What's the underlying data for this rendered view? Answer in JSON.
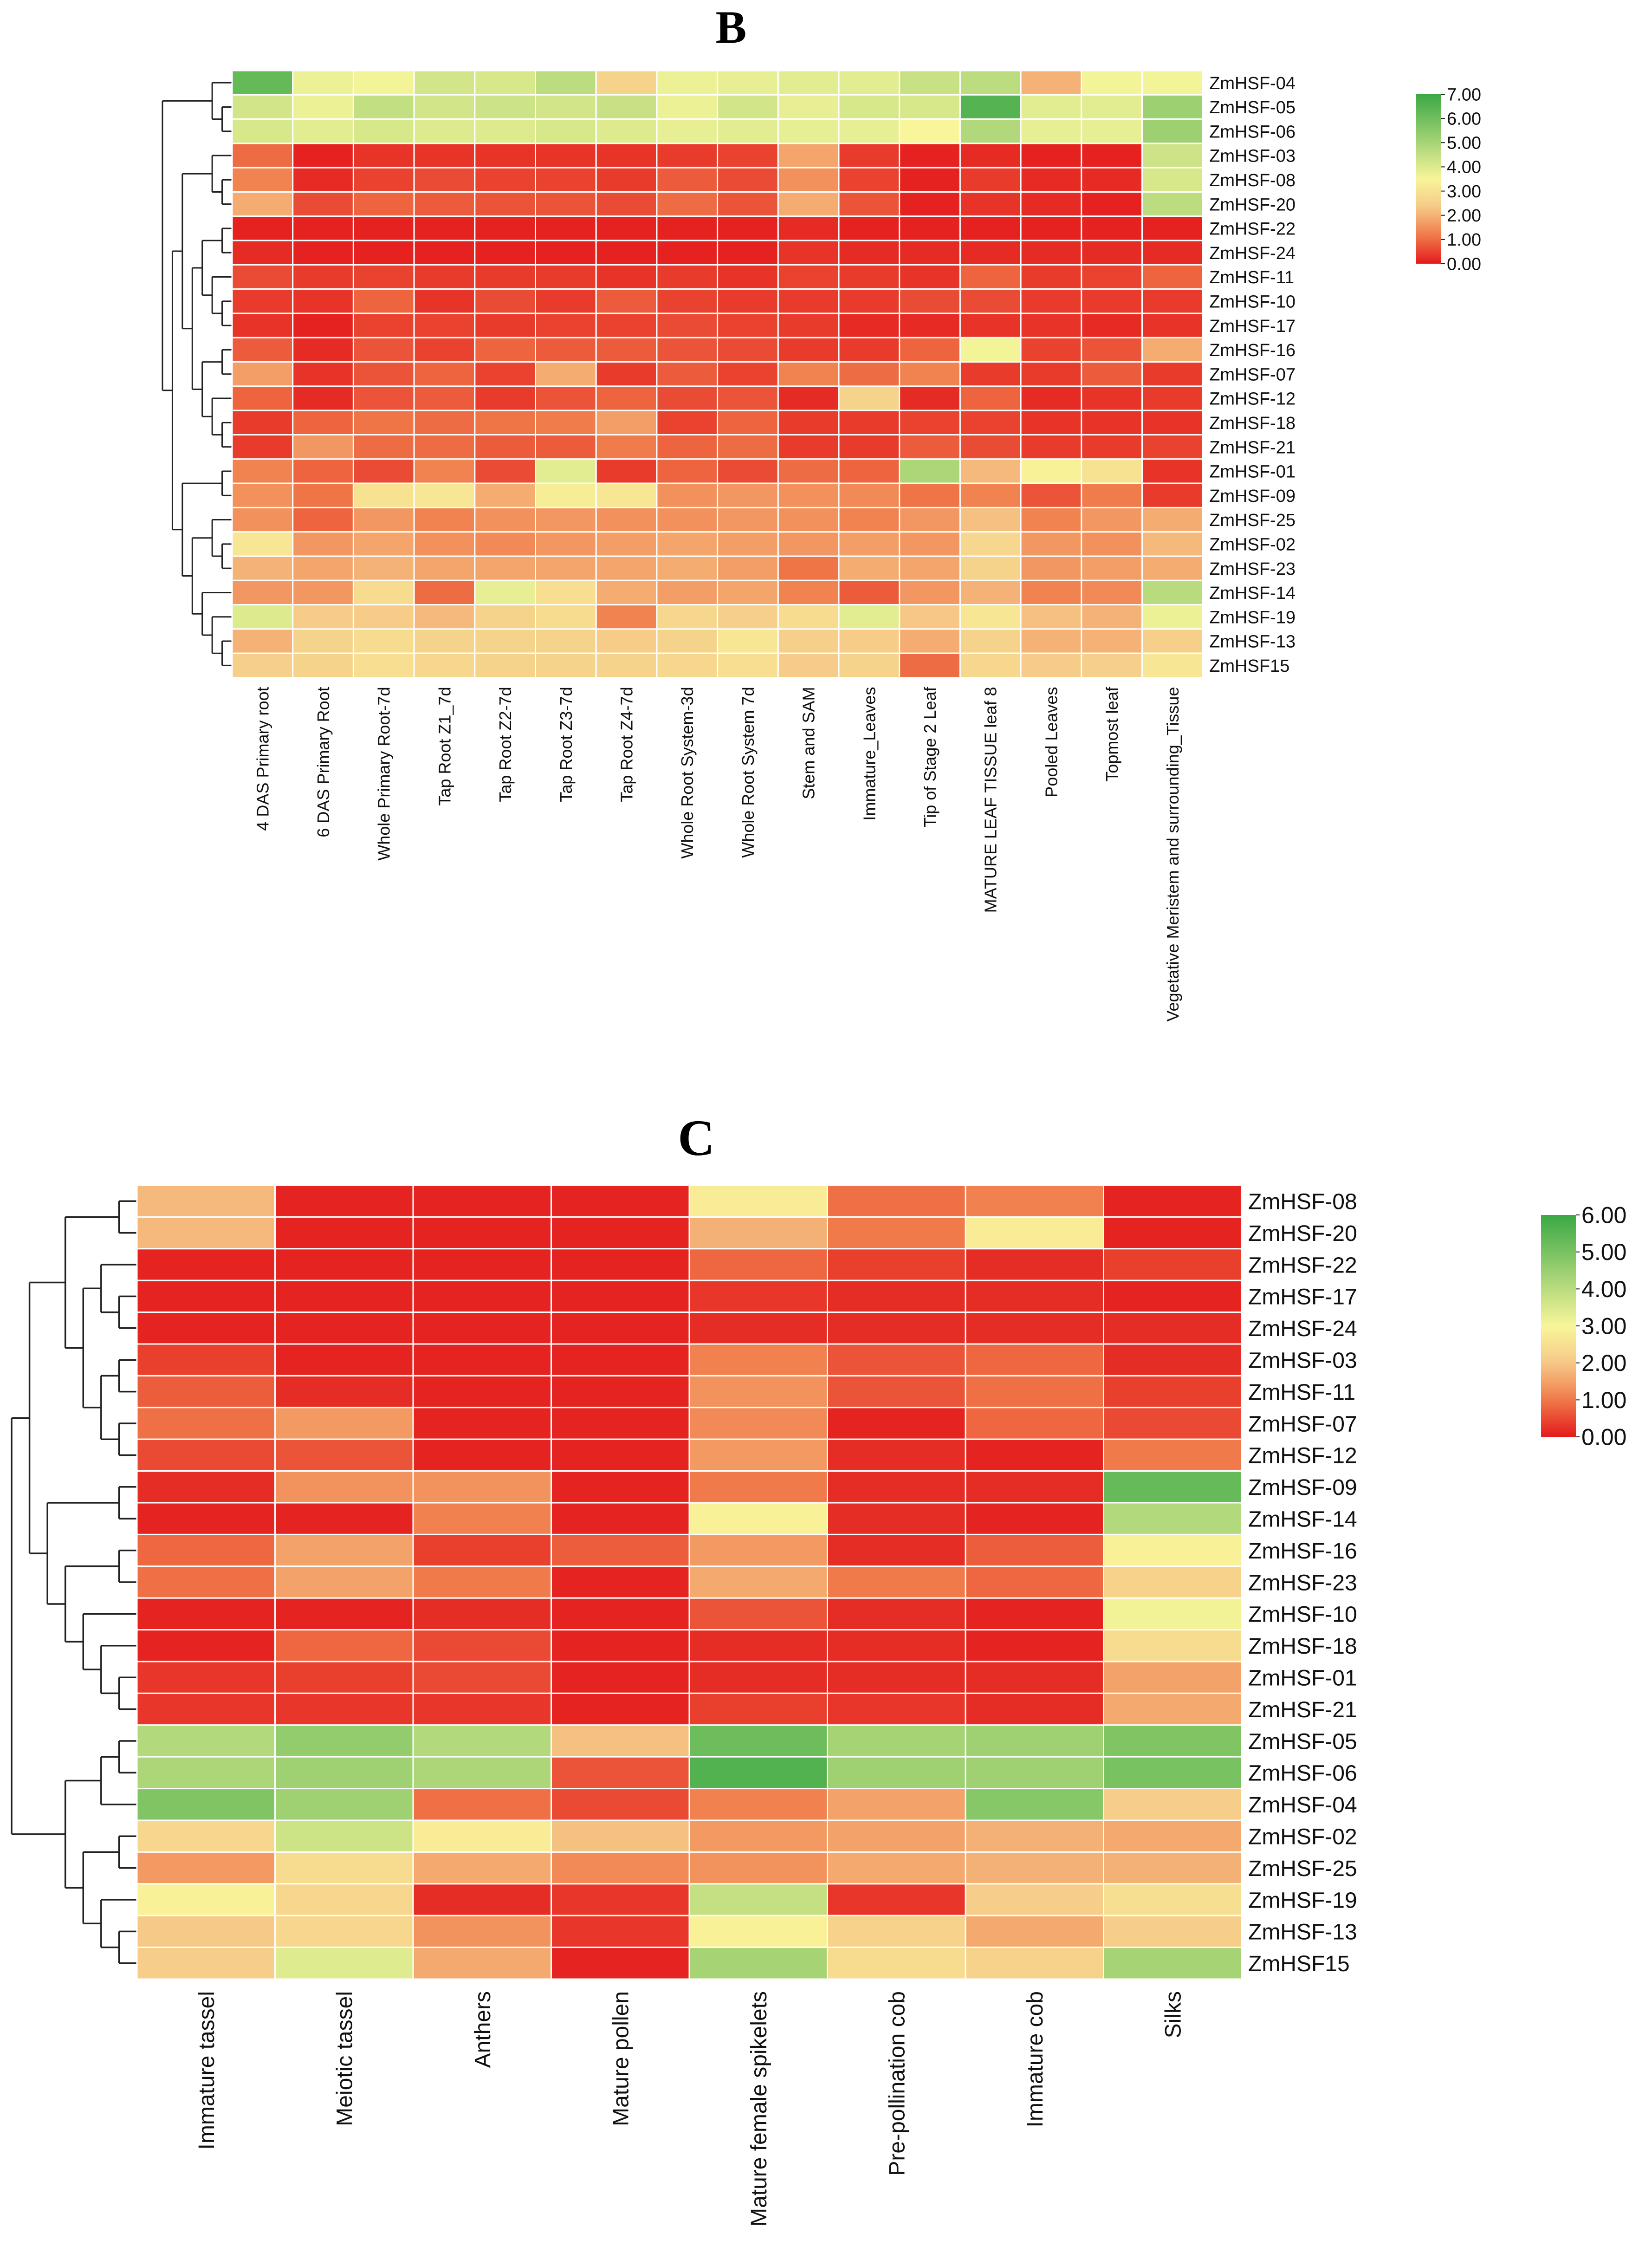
{
  "colors": {
    "low": "#e41a1c",
    "mid_low": "#f07a4a",
    "mid": "#f6c987",
    "mid_high": "#f8f59a",
    "high": "#3aa845"
  },
  "chart_data": [
    {
      "type": "heatmap",
      "title": "B",
      "rows": [
        "ZmHSF-04",
        "ZmHSF-05",
        "ZmHSF-06",
        "ZmHSF-03",
        "ZmHSF-08",
        "ZmHSF-20",
        "ZmHSF-22",
        "ZmHSF-24",
        "ZmHSF-11",
        "ZmHSF-10",
        "ZmHSF-17",
        "ZmHSF-16",
        "ZmHSF-07",
        "ZmHSF-12",
        "ZmHSF-18",
        "ZmHSF-21",
        "ZmHSF-01",
        "ZmHSF-09",
        "ZmHSF-25",
        "ZmHSF-02",
        "ZmHSF-23",
        "ZmHSF-14",
        "ZmHSF-19",
        "ZmHSF-13",
        "ZmHSF15"
      ],
      "columns": [
        "4 DAS Primary root",
        "6 DAS Primary Root",
        "Whole Primary Root-7d",
        "Tap Root Z1_7d",
        "Tap Root Z2-7d",
        "Tap Root Z3-7d",
        "Tap Root Z4-7d",
        "Whole Root System-3d",
        "Whole Root System 7d",
        "Stem and SAM",
        "Immature_Leaves",
        "Tip of Stage 2 Leaf",
        "MATURE LEAF TISSUE leaf 8",
        "Pooled Leaves",
        "Topmost leaf",
        "Vegetative Meristem and surrounding_Tissue"
      ],
      "values": [
        [
          6.2,
          3.7,
          3.6,
          4.2,
          4.1,
          4.6,
          2.6,
          3.7,
          3.8,
          3.9,
          3.9,
          4.4,
          4.6,
          2.0,
          3.6,
          3.6
        ],
        [
          4.2,
          3.7,
          4.5,
          4.2,
          4.3,
          4.2,
          4.4,
          3.7,
          4.2,
          3.8,
          4.1,
          4.1,
          6.5,
          3.9,
          3.9,
          5.2
        ],
        [
          4.1,
          3.9,
          4.1,
          4.0,
          4.0,
          4.1,
          4.0,
          3.8,
          3.9,
          3.8,
          3.8,
          3.5,
          4.8,
          3.8,
          3.8,
          5.2
        ],
        [
          1.0,
          0.1,
          0.3,
          0.3,
          0.3,
          0.3,
          0.3,
          0.4,
          0.5,
          1.8,
          0.4,
          0.1,
          0.2,
          0.1,
          0.1,
          4.3
        ],
        [
          1.3,
          0.2,
          0.5,
          0.6,
          0.5,
          0.5,
          0.4,
          0.8,
          0.6,
          1.5,
          0.5,
          0.1,
          0.4,
          0.2,
          0.2,
          4.1
        ],
        [
          1.9,
          0.6,
          0.9,
          0.8,
          0.7,
          0.7,
          0.6,
          1.0,
          0.7,
          1.9,
          0.7,
          0.1,
          0.3,
          0.2,
          0.1,
          4.6
        ],
        [
          0.1,
          0.1,
          0.1,
          0.1,
          0.1,
          0.1,
          0.1,
          0.1,
          0.1,
          0.2,
          0.1,
          0.1,
          0.1,
          0.1,
          0.1,
          0.1
        ],
        [
          0.2,
          0.1,
          0.1,
          0.1,
          0.1,
          0.1,
          0.1,
          0.1,
          0.1,
          0.3,
          0.2,
          0.2,
          0.2,
          0.2,
          0.2,
          0.2
        ],
        [
          0.6,
          0.4,
          0.5,
          0.4,
          0.4,
          0.4,
          0.3,
          0.4,
          0.3,
          0.5,
          0.4,
          0.3,
          0.9,
          0.4,
          0.5,
          0.9
        ],
        [
          0.4,
          0.3,
          0.9,
          0.3,
          0.6,
          0.4,
          0.8,
          0.5,
          0.4,
          0.4,
          0.4,
          0.6,
          0.6,
          0.4,
          0.4,
          0.4
        ],
        [
          0.3,
          0.1,
          0.5,
          0.5,
          0.4,
          0.5,
          0.5,
          0.6,
          0.5,
          0.4,
          0.2,
          0.2,
          0.3,
          0.3,
          0.2,
          0.3
        ],
        [
          0.8,
          0.2,
          0.7,
          0.5,
          0.9,
          0.8,
          0.8,
          0.7,
          0.6,
          0.4,
          0.4,
          0.9,
          3.6,
          0.5,
          0.7,
          1.9
        ],
        [
          1.7,
          0.3,
          0.7,
          0.9,
          0.5,
          1.9,
          0.4,
          0.8,
          0.5,
          1.3,
          1.0,
          1.3,
          0.4,
          0.4,
          0.8,
          0.4
        ],
        [
          0.9,
          0.2,
          0.7,
          0.8,
          0.4,
          0.7,
          0.9,
          0.6,
          0.7,
          0.2,
          2.6,
          0.2,
          0.9,
          0.2,
          0.3,
          0.4
        ],
        [
          0.4,
          0.9,
          1.1,
          1.0,
          1.1,
          1.2,
          1.7,
          0.5,
          0.9,
          0.4,
          0.4,
          0.5,
          0.5,
          0.3,
          0.3,
          0.3
        ],
        [
          0.4,
          1.6,
          1.0,
          1.0,
          0.8,
          0.8,
          1.2,
          0.9,
          1.0,
          0.4,
          0.4,
          0.8,
          0.6,
          0.4,
          0.4,
          0.5
        ],
        [
          1.3,
          0.9,
          0.6,
          1.3,
          0.6,
          3.9,
          0.4,
          0.9,
          0.6,
          1.0,
          0.9,
          4.9,
          2.1,
          3.4,
          3.0,
          0.3
        ],
        [
          1.5,
          1.1,
          3.0,
          3.1,
          1.9,
          3.3,
          3.1,
          1.5,
          1.6,
          1.5,
          1.4,
          1.1,
          1.3,
          0.7,
          1.2,
          0.4
        ],
        [
          1.5,
          0.9,
          1.6,
          1.3,
          1.5,
          1.6,
          1.5,
          1.5,
          1.6,
          1.5,
          1.3,
          1.6,
          2.2,
          1.3,
          1.6,
          1.9
        ],
        [
          3.1,
          1.6,
          1.8,
          1.5,
          1.4,
          1.6,
          1.7,
          1.8,
          1.7,
          1.6,
          1.7,
          1.6,
          2.7,
          1.6,
          1.5,
          2.1
        ],
        [
          2.0,
          1.8,
          2.0,
          1.8,
          1.8,
          1.8,
          1.8,
          1.9,
          1.7,
          1.1,
          1.9,
          1.8,
          2.6,
          1.6,
          1.7,
          1.9
        ],
        [
          1.6,
          1.6,
          2.8,
          1.0,
          3.8,
          2.9,
          1.9,
          1.7,
          1.8,
          1.3,
          0.8,
          1.6,
          2.0,
          1.3,
          1.4,
          4.7
        ],
        [
          4.0,
          2.4,
          2.4,
          2.1,
          2.6,
          2.8,
          1.3,
          2.7,
          2.5,
          2.8,
          3.9,
          2.3,
          3.1,
          2.2,
          2.0,
          3.7
        ],
        [
          2.0,
          2.6,
          2.8,
          2.6,
          2.6,
          2.6,
          2.4,
          2.6,
          3.1,
          2.5,
          2.4,
          1.9,
          2.6,
          2.0,
          2.0,
          2.5
        ],
        [
          2.5,
          2.6,
          2.9,
          2.7,
          2.6,
          2.6,
          2.6,
          2.7,
          2.9,
          2.4,
          2.6,
          1.0,
          2.7,
          2.4,
          2.5,
          3.1
        ]
      ],
      "color_range": [
        0,
        7
      ],
      "legend_ticks": [
        "7.00",
        "6.00",
        "5.00",
        "4.00",
        "3.00",
        "2.00",
        "1.00",
        "0.00"
      ]
    },
    {
      "type": "heatmap",
      "title": "C",
      "rows": [
        "ZmHSF-08",
        "ZmHSF-20",
        "ZmHSF-22",
        "ZmHSF-17",
        "ZmHSF-24",
        "ZmHSF-03",
        "ZmHSF-11",
        "ZmHSF-07",
        "ZmHSF-12",
        "ZmHSF-09",
        "ZmHSF-14",
        "ZmHSF-16",
        "ZmHSF-23",
        "ZmHSF-10",
        "ZmHSF-18",
        "ZmHSF-01",
        "ZmHSF-21",
        "ZmHSF-05",
        "ZmHSF-06",
        "ZmHSF-04",
        "ZmHSF-02",
        "ZmHSF-25",
        "ZmHSF-19",
        "ZmHSF-13",
        "ZmHSF15"
      ],
      "columns": [
        "Immature tassel",
        "Meiotic tassel",
        "Anthers",
        "Mature pollen",
        "Mature female spikelets",
        "Pre-pollination cob",
        "Immature cob",
        "Silks"
      ],
      "values": [
        [
          1.8,
          0.1,
          0.1,
          0.1,
          2.8,
          0.9,
          1.1,
          0.1
        ],
        [
          1.8,
          0.1,
          0.1,
          0.1,
          1.7,
          1.0,
          2.8,
          0.1
        ],
        [
          0.1,
          0.1,
          0.1,
          0.1,
          0.8,
          0.4,
          0.2,
          0.4
        ],
        [
          0.1,
          0.1,
          0.1,
          0.1,
          0.3,
          0.2,
          0.2,
          0.1
        ],
        [
          0.1,
          0.1,
          0.1,
          0.1,
          0.2,
          0.2,
          0.2,
          0.2
        ],
        [
          0.4,
          0.1,
          0.1,
          0.1,
          1.1,
          0.6,
          0.8,
          0.2
        ],
        [
          0.7,
          0.2,
          0.1,
          0.1,
          1.3,
          0.6,
          0.9,
          0.4
        ],
        [
          0.9,
          1.4,
          0.1,
          0.1,
          1.2,
          0.1,
          0.8,
          0.5
        ],
        [
          0.5,
          0.6,
          0.1,
          0.1,
          1.4,
          0.2,
          0.1,
          1.0
        ],
        [
          0.2,
          1.3,
          1.3,
          0.1,
          1.0,
          0.2,
          0.2,
          5.3
        ],
        [
          0.1,
          0.1,
          1.1,
          0.1,
          2.9,
          0.2,
          0.1,
          4.1
        ],
        [
          0.8,
          1.5,
          0.4,
          0.7,
          1.4,
          0.2,
          0.7,
          2.9
        ],
        [
          0.9,
          1.5,
          1.0,
          0.1,
          1.6,
          1.0,
          0.8,
          2.2
        ],
        [
          0.1,
          0.1,
          0.2,
          0.1,
          0.6,
          0.2,
          0.1,
          3.1
        ],
        [
          0.1,
          0.8,
          0.5,
          0.1,
          0.2,
          0.2,
          0.1,
          2.4
        ],
        [
          0.3,
          0.4,
          0.5,
          0.1,
          0.2,
          0.2,
          0.2,
          1.5
        ],
        [
          0.3,
          0.3,
          0.3,
          0.1,
          0.4,
          0.3,
          0.2,
          1.6
        ],
        [
          4.1,
          4.6,
          4.1,
          1.9,
          5.2,
          4.3,
          4.4,
          4.9
        ],
        [
          4.2,
          4.4,
          4.2,
          0.6,
          5.6,
          4.4,
          4.4,
          5.0
        ],
        [
          4.9,
          4.4,
          0.9,
          0.5,
          1.1,
          1.5,
          4.8,
          2.1
        ],
        [
          2.3,
          3.7,
          2.8,
          1.9,
          1.4,
          1.5,
          1.7,
          1.6
        ],
        [
          1.4,
          2.4,
          1.6,
          1.2,
          1.3,
          1.6,
          1.7,
          1.7
        ],
        [
          2.9,
          2.3,
          0.2,
          0.3,
          3.8,
          0.3,
          2.1,
          2.5
        ],
        [
          2.0,
          2.3,
          1.3,
          0.3,
          2.9,
          2.2,
          1.6,
          2.1
        ],
        [
          2.1,
          3.4,
          1.6,
          0.1,
          4.3,
          2.4,
          2.2,
          4.3
        ]
      ],
      "color_range": [
        0,
        6
      ],
      "legend_ticks": [
        "6.00",
        "5.00",
        "4.00",
        "3.00",
        "2.00",
        "1.00",
        "0.00"
      ]
    }
  ]
}
